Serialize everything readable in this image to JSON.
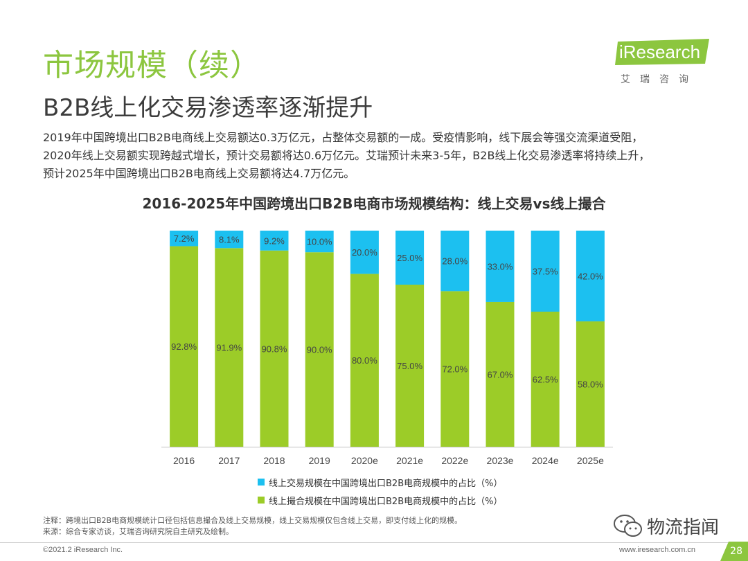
{
  "header": {
    "title": "市场规模（续）",
    "subtitle": "B2B线上化交易渗透率逐渐提升"
  },
  "logo": {
    "brand": "iResearch",
    "brand_cn": "艾瑞咨询",
    "color": "#8cc63f"
  },
  "description": {
    "line1": "2019年中国跨境出口B2B电商线上交易额达0.3万亿元，占整体交易额的一成。受疫情影响，线下展会等强交流渠道受阻，",
    "line2": "2020年线上交易额实现跨越式增长，预计交易额将达0.6万亿元。艾瑞预计未来3-5年，B2B线上化交易渗透率将持续上升，",
    "line3": "预计2025年中国跨境出口B2B电商线上交易额将达4.7万亿元。"
  },
  "chart_data": {
    "type": "bar",
    "stacked": true,
    "title": "2016-2025年中国跨境出口B2B电商市场规模结构：线上交易vs线上撮合",
    "categories": [
      "2016",
      "2017",
      "2018",
      "2019",
      "2020e",
      "2021e",
      "2022e",
      "2023e",
      "2024e",
      "2025e"
    ],
    "series": [
      {
        "name": "线上交易规模在中国跨境出口B2B电商规模中的占比（%）",
        "color": "#1cc0f0",
        "values": [
          7.2,
          8.1,
          9.2,
          10.0,
          20.0,
          25.0,
          28.0,
          33.0,
          37.5,
          42.0
        ],
        "labels": [
          "7.2%",
          "8.1%",
          "9.2%",
          "10.0%",
          "20.0%",
          "25.0%",
          "28.0%",
          "33.0%",
          "37.5%",
          "42.0%"
        ]
      },
      {
        "name": "线上撮合规模在中国跨境出口B2B电商规模中的占比（%）",
        "color": "#9ccc28",
        "values": [
          92.8,
          91.9,
          90.8,
          90.0,
          80.0,
          75.0,
          72.0,
          67.0,
          62.5,
          58.0
        ],
        "labels": [
          "92.8%",
          "91.9%",
          "90.8%",
          "90.0%",
          "80.0%",
          "75.0%",
          "72.0%",
          "67.0%",
          "62.5%",
          "58.0%"
        ]
      }
    ],
    "ylim": [
      0,
      100
    ],
    "legend_position": "bottom",
    "grid": false
  },
  "notes": {
    "note": "注释：跨境出口B2B电商规模统计口径包括信息撮合及线上交易规模，线上交易规模仅包含线上交易，即支付线上化的规模。",
    "source": "来源：综合专家访谈，艾瑞咨询研究院自主研究及绘制。"
  },
  "footer": {
    "copyright": "©2021.2 iResearch Inc.",
    "website": "www.iresearch.com.cn",
    "page": "28",
    "watermark": "物流指闻",
    "watermark_icon": "wechat-icon"
  }
}
